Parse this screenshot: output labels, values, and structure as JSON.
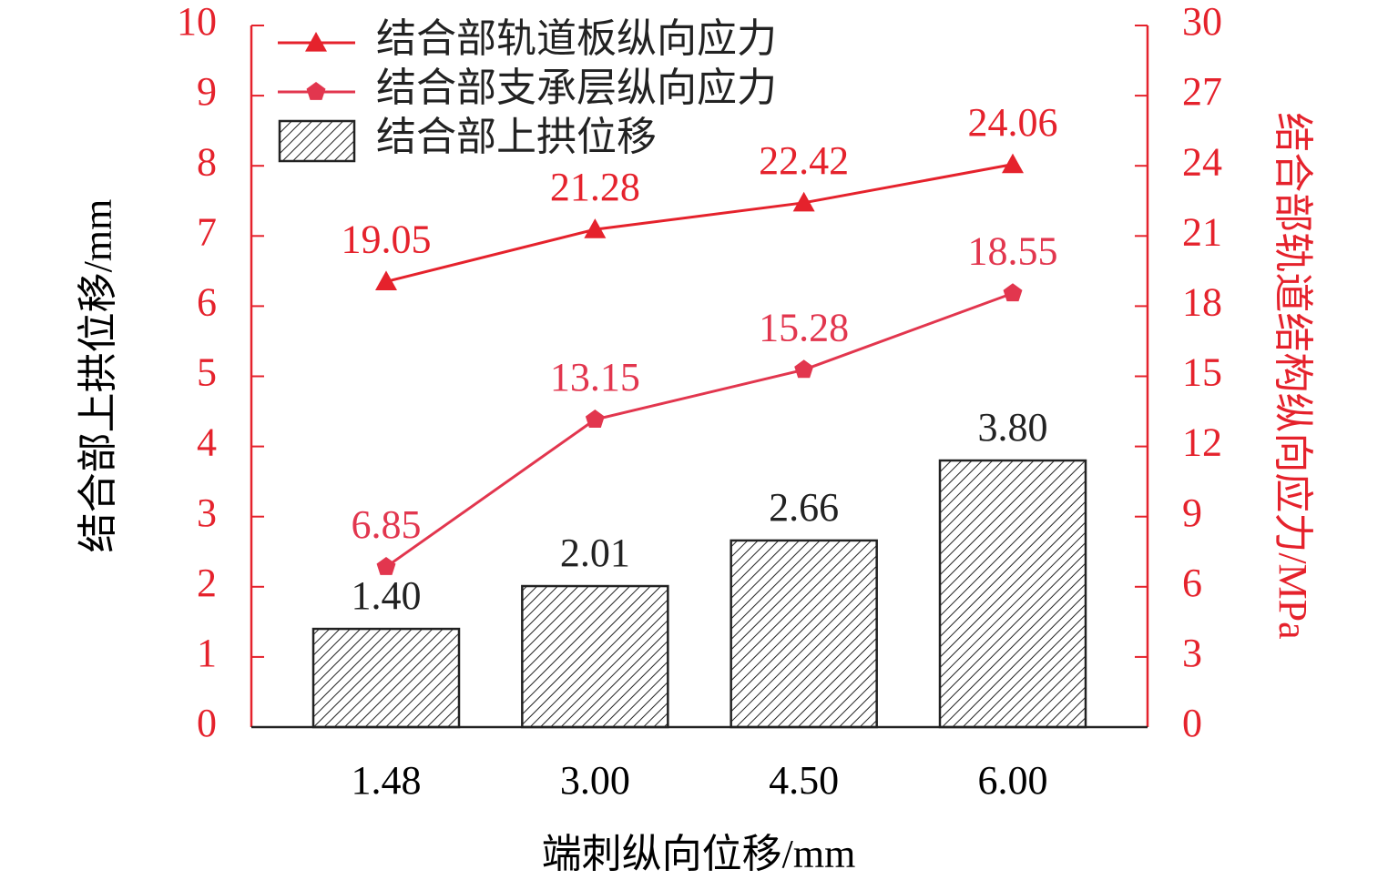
{
  "chart_data": {
    "type": "bar",
    "categories": [
      "1.48",
      "3.00",
      "4.50",
      "6.00"
    ],
    "series": [
      {
        "name": "结合部轨道板纵向应力",
        "type": "line",
        "marker": "triangle",
        "color": "#e5222c",
        "axis": "y2",
        "values": [
          19.05,
          21.28,
          22.42,
          24.06
        ]
      },
      {
        "name": "结合部支承层纵向应力",
        "type": "line",
        "marker": "pentagon",
        "color": "#e2364e",
        "axis": "y2",
        "values": [
          6.85,
          13.15,
          15.28,
          18.55
        ]
      },
      {
        "name": "结合部上拱位移",
        "type": "bar",
        "pattern": "hatch",
        "color": "#222222",
        "values": [
          1.4,
          2.01,
          2.66,
          3.8
        ],
        "value_labels": [
          "1.40",
          "2.01",
          "2.66",
          "3.80"
        ]
      }
    ],
    "x_label": "端刺纵向位移/mm",
    "y_label": "结合部上拱位移/mm",
    "y2_label": "结合部轨道结构纵向应力/MPa",
    "ylim": [
      0,
      10
    ],
    "yticks": [
      0,
      1,
      2,
      3,
      4,
      5,
      6,
      7,
      8,
      9,
      10
    ],
    "y2lim": [
      0,
      30
    ],
    "y2ticks": [
      0,
      3,
      6,
      9,
      12,
      15,
      18,
      21,
      24,
      27,
      30
    ],
    "y2_color": "#e5222c",
    "legend": "upper left"
  }
}
